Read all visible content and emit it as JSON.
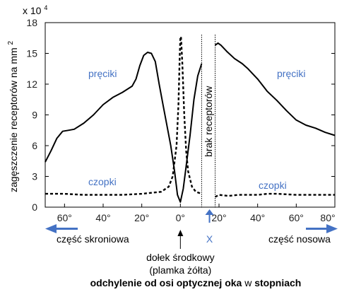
{
  "chart_data": {
    "type": "line",
    "multiplier_label": "x 10",
    "multiplier_exp": "4",
    "ylabel": "zagęszczenie receptorów na mm",
    "ylabel_sup": "2",
    "ylim": [
      0,
      18
    ],
    "y_ticks": [
      "0",
      "3",
      "6",
      "9",
      "12",
      "15",
      "18"
    ],
    "xlim": [
      -70,
      80
    ],
    "x_tick_values": [
      -60,
      -40,
      -20,
      0,
      20,
      40,
      60,
      80
    ],
    "x_ticks": [
      "60°",
      "40°",
      "20°",
      "0°",
      "20°",
      "40°",
      "60°",
      "80°"
    ],
    "blind_spot": {
      "x_start": 11,
      "x_end": 18,
      "label": "brak receptorów",
      "marker": "X"
    },
    "series": [
      {
        "name": "pręciki",
        "style": "solid",
        "segments": [
          [
            [
              -70,
              4.4
            ],
            [
              -67,
              5.5
            ],
            [
              -64,
              6.7
            ],
            [
              -61,
              7.4
            ],
            [
              -58,
              7.5
            ],
            [
              -55,
              7.6
            ],
            [
              -50,
              8.2
            ],
            [
              -45,
              9.0
            ],
            [
              -40,
              10.0
            ],
            [
              -35,
              10.7
            ],
            [
              -30,
              11.2
            ],
            [
              -25,
              11.8
            ],
            [
              -23,
              12.5
            ],
            [
              -21,
              13.8
            ],
            [
              -19,
              14.8
            ],
            [
              -17,
              15.1
            ],
            [
              -15,
              15.0
            ],
            [
              -13,
              14.2
            ],
            [
              -11,
              12.0
            ],
            [
              -9,
              10.0
            ],
            [
              -7,
              8.0
            ],
            [
              -5,
              6.0
            ],
            [
              -3,
              3.5
            ],
            [
              -1.5,
              1.2
            ],
            [
              0,
              0.5
            ],
            [
              1.5,
              1.8
            ],
            [
              3,
              4.0
            ],
            [
              5,
              7.0
            ],
            [
              7,
              10.5
            ],
            [
              9,
              12.8
            ],
            [
              11,
              14.0
            ]
          ],
          [
            [
              18,
              15.8
            ],
            [
              19.5,
              16.0
            ],
            [
              21,
              15.8
            ],
            [
              24,
              15.2
            ],
            [
              28,
              14.5
            ],
            [
              32,
              14.0
            ],
            [
              35,
              13.5
            ],
            [
              40,
              12.5
            ],
            [
              45,
              11.3
            ],
            [
              50,
              10.4
            ],
            [
              55,
              9.4
            ],
            [
              60,
              8.5
            ],
            [
              65,
              8.0
            ],
            [
              70,
              7.7
            ],
            [
              75,
              7.3
            ],
            [
              80,
              7.0
            ]
          ]
        ]
      },
      {
        "name": "czopki",
        "style": "dashed",
        "segments": [
          [
            [
              -70,
              1.3
            ],
            [
              -60,
              1.3
            ],
            [
              -50,
              1.2
            ],
            [
              -40,
              1.2
            ],
            [
              -30,
              1.2
            ],
            [
              -20,
              1.3
            ],
            [
              -15,
              1.4
            ],
            [
              -10,
              1.5
            ],
            [
              -6,
              2.0
            ],
            [
              -4,
              3.0
            ],
            [
              -2,
              6.0
            ],
            [
              -1,
              10.0
            ],
            [
              -0.3,
              15.0
            ],
            [
              0,
              16.6
            ]
          ],
          [
            [
              0.3,
              16.6
            ],
            [
              1,
              14.0
            ],
            [
              2,
              9.0
            ],
            [
              3,
              5.5
            ],
            [
              4,
              3.5
            ],
            [
              6,
              2.0
            ],
            [
              8,
              1.5
            ],
            [
              11,
              1.3
            ]
          ],
          [
            [
              18,
              1.0
            ],
            [
              20,
              1.2
            ],
            [
              25,
              1.1
            ],
            [
              30,
              1.2
            ],
            [
              40,
              1.2
            ],
            [
              45,
              1.3
            ],
            [
              50,
              1.3
            ],
            [
              60,
              1.2
            ],
            [
              70,
              1.2
            ],
            [
              80,
              1.2
            ]
          ]
        ]
      }
    ],
    "annotations": {
      "temporal_label": "część skroniowa",
      "nasal_label": "część nosowa",
      "fovea_line1": "dołek środkowy",
      "fovea_line2": "(plamka żółta)"
    },
    "xlabel_parts": [
      {
        "text": "odchylenie od osi optycznej oka",
        "bold": true
      },
      {
        "text": " w ",
        "bold": false
      },
      {
        "text": "stopniach",
        "bold": true
      }
    ],
    "colors": {
      "series_label": "#4472c4",
      "arrow": "#4472c4",
      "line": "#000000"
    }
  }
}
